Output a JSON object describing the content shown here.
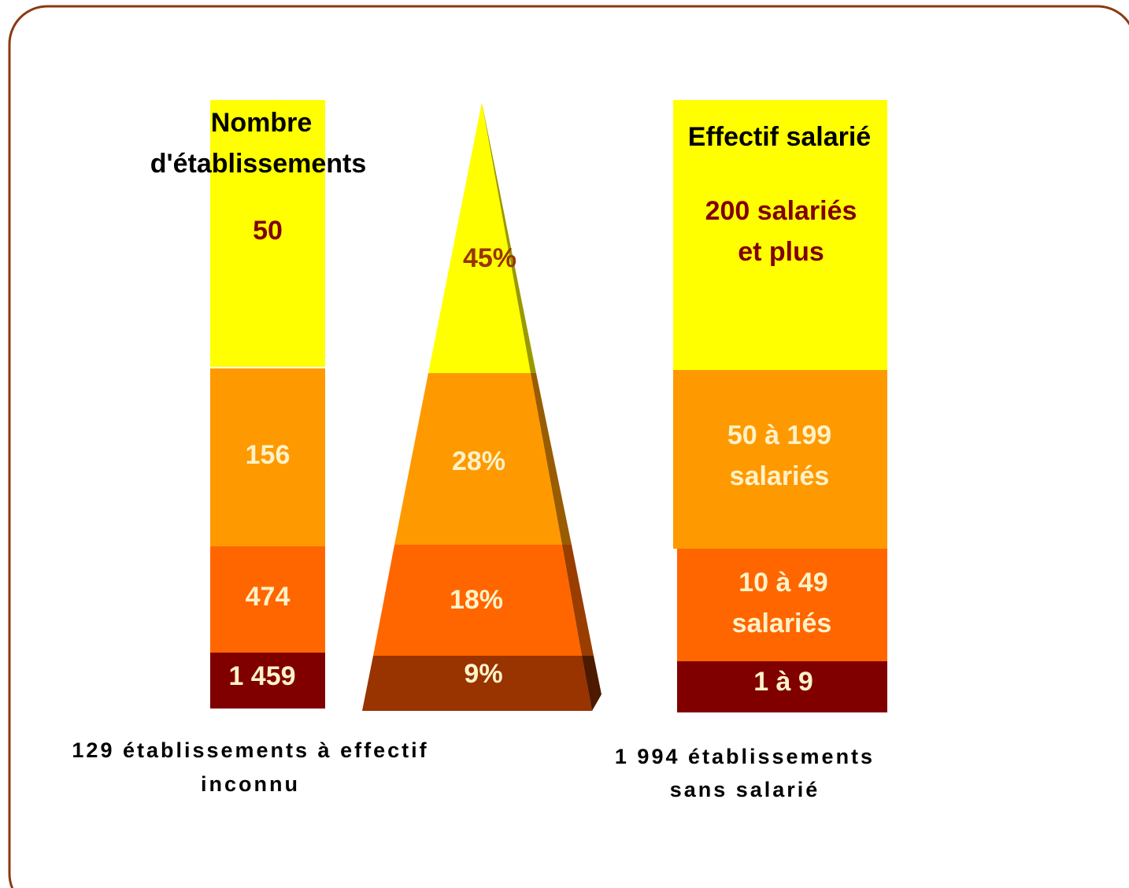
{
  "left_column": {
    "title": [
      "Nombre",
      "d'établissements"
    ],
    "segments": [
      "50",
      "156",
      "474",
      "1 459"
    ]
  },
  "pyramid": {
    "segments": [
      "45%",
      "28%",
      "18%",
      "9%"
    ]
  },
  "right_column": {
    "title": "Effectif salarié",
    "segments": [
      [
        "200 salariés",
        "et plus"
      ],
      [
        "50 à 199",
        "salariés"
      ],
      [
        "10 à 49",
        "salariés"
      ],
      [
        "1 à 9"
      ]
    ]
  },
  "notes": {
    "left": [
      "129  établissements  à effectif",
      "inconnu"
    ],
    "right": [
      "1 994 établissements",
      "sans salarié"
    ]
  }
}
